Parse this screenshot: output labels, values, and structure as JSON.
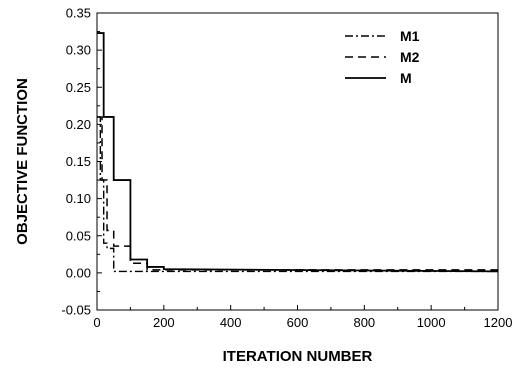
{
  "chart_data": {
    "type": "line",
    "xlabel": "ITERATION NUMBER",
    "ylabel": "OBJECTIVE FUNCTION",
    "xlim": [
      0,
      1200
    ],
    "ylim": [
      -0.05,
      0.35
    ],
    "x_ticks": [
      0,
      200,
      400,
      600,
      800,
      1000,
      1200
    ],
    "y_ticks": [
      -0.05,
      0.0,
      0.05,
      0.1,
      0.15,
      0.2,
      0.25,
      0.3,
      0.35
    ],
    "x_tick_labels": [
      "0",
      "200",
      "400",
      "600",
      "800",
      "1000",
      "1200"
    ],
    "y_tick_labels": [
      "-0.05",
      "0.00",
      "0.05",
      "0.10",
      "0.15",
      "0.20",
      "0.25",
      "0.30",
      "0.35"
    ],
    "grid": false,
    "legend_position": "top-right",
    "series": [
      {
        "name": "M1",
        "style": "dash-dot",
        "color": "#000000",
        "x": [
          1,
          10,
          10,
          20,
          20,
          30,
          30,
          50,
          50,
          1200
        ],
        "y": [
          0.21,
          0.21,
          0.125,
          0.125,
          0.04,
          0.04,
          0.033,
          0.033,
          0.002,
          0.002
        ]
      },
      {
        "name": "M2",
        "style": "dashed",
        "color": "#000000",
        "x": [
          1,
          15,
          15,
          30,
          30,
          50,
          50,
          100,
          100,
          150,
          150,
          1200
        ],
        "y": [
          0.21,
          0.21,
          0.125,
          0.125,
          0.057,
          0.057,
          0.036,
          0.036,
          0.013,
          0.013,
          0.004,
          0.004
        ]
      },
      {
        "name": "M",
        "style": "solid",
        "color": "#000000",
        "x": [
          1,
          20,
          20,
          50,
          50,
          100,
          100,
          150,
          150,
          200,
          200,
          1200
        ],
        "y": [
          0.323,
          0.323,
          0.21,
          0.21,
          0.125,
          0.125,
          0.018,
          0.018,
          0.008,
          0.008,
          0.005,
          0.002
        ]
      }
    ]
  }
}
